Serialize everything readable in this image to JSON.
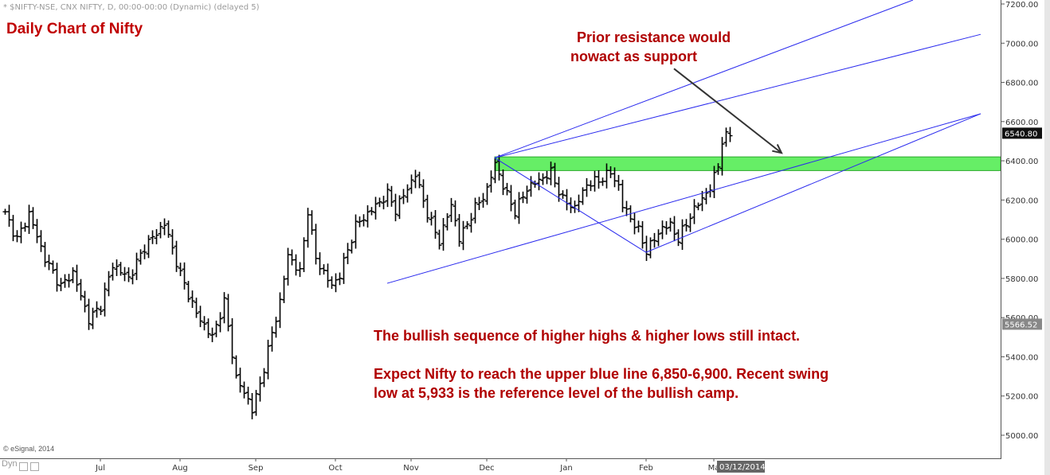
{
  "header": {
    "instrument": "* $NIFTY-NSE, CNX NIFTY, D, 00:00-00:00 (Dynamic) (delayed 5)"
  },
  "chart_data": {
    "type": "ohlc",
    "title": "Daily Chart of Nifty",
    "y_axis": {
      "position": "right",
      "range": [
        4900,
        7220
      ],
      "ticks": [
        5000,
        5200,
        5400,
        5600,
        5800,
        6000,
        6200,
        6400,
        6600,
        6800,
        7000,
        7200
      ],
      "tick_labels": [
        "5000.00",
        "5200.00",
        "5400.00",
        "5600.00",
        "5800.00",
        "6000.00",
        "6200.00",
        "6400.00",
        "6600.00",
        "6800.00",
        "7000.00",
        "7200.00"
      ]
    },
    "x_axis": {
      "labels": [
        "Jul",
        "Aug",
        "Sep",
        "Oct",
        "Nov",
        "Dec",
        "Jan",
        "Feb",
        "Ma"
      ],
      "label_bar_index": [
        24,
        44,
        63,
        83,
        102,
        121,
        141,
        161,
        178
      ],
      "cursor_date": "03/12/2014"
    },
    "last_price": {
      "value": 6540.8,
      "label": "6540.80"
    },
    "marker_price": {
      "value": 5566.52,
      "label": "5566.52"
    },
    "pivots": [
      [
        0,
        6130
      ],
      [
        3,
        6000
      ],
      [
        6,
        6130
      ],
      [
        10,
        5900
      ],
      [
        14,
        5760
      ],
      [
        17,
        5830
      ],
      [
        21,
        5590
      ],
      [
        24,
        5660
      ],
      [
        27,
        5870
      ],
      [
        31,
        5800
      ],
      [
        35,
        5960
      ],
      [
        40,
        6080
      ],
      [
        44,
        5820
      ],
      [
        48,
        5620
      ],
      [
        52,
        5500
      ],
      [
        55,
        5680
      ],
      [
        58,
        5290
      ],
      [
        61,
        5180
      ],
      [
        62,
        5130
      ],
      [
        64,
        5260
      ],
      [
        67,
        5520
      ],
      [
        69,
        5680
      ],
      [
        71,
        5920
      ],
      [
        74,
        5830
      ],
      [
        76,
        6150
      ],
      [
        78,
        5900
      ],
      [
        82,
        5760
      ],
      [
        84,
        5820
      ],
      [
        88,
        6070
      ],
      [
        92,
        6150
      ],
      [
        96,
        6230
      ],
      [
        98,
        6150
      ],
      [
        101,
        6260
      ],
      [
        103,
        6330
      ],
      [
        106,
        6130
      ],
      [
        109,
        5990
      ],
      [
        112,
        6180
      ],
      [
        114,
        6000
      ],
      [
        118,
        6160
      ],
      [
        121,
        6250
      ],
      [
        123,
        6390
      ],
      [
        125,
        6270
      ],
      [
        128,
        6140
      ],
      [
        131,
        6260
      ],
      [
        134,
        6300
      ],
      [
        137,
        6340
      ],
      [
        140,
        6200
      ],
      [
        143,
        6160
      ],
      [
        146,
        6280
      ],
      [
        149,
        6300
      ],
      [
        152,
        6340
      ],
      [
        154,
        6270
      ],
      [
        155,
        6170
      ],
      [
        157,
        6110
      ],
      [
        159,
        6040
      ],
      [
        161,
        5940
      ],
      [
        163,
        6000
      ],
      [
        165,
        6060
      ],
      [
        167,
        6070
      ],
      [
        169,
        6000
      ],
      [
        172,
        6120
      ],
      [
        175,
        6210
      ],
      [
        177,
        6260
      ],
      [
        179,
        6380
      ],
      [
        180,
        6500
      ],
      [
        182,
        6540
      ]
    ],
    "series": [
      {
        "type": "channel-line",
        "color": "#2a2aee",
        "points": [
          [
            96,
            5775
          ],
          [
            245,
            6640
          ]
        ]
      },
      {
        "type": "channel-line",
        "color": "#2a2aee",
        "points": [
          [
            123,
            6415
          ],
          [
            245,
            7045
          ]
        ]
      },
      {
        "type": "channel-line",
        "color": "#2a2aee",
        "points": [
          [
            123,
            6415
          ],
          [
            228,
            7220
          ]
        ]
      },
      {
        "type": "channel-line",
        "color": "#2a2aee",
        "points": [
          [
            161,
            5933
          ],
          [
            245,
            6640
          ]
        ]
      },
      {
        "type": "trend-line",
        "color": "#2a2aee",
        "points": [
          [
            123,
            6415
          ],
          [
            161,
            5933
          ]
        ]
      }
    ],
    "zones": [
      {
        "color": "#66ee66",
        "y_range": [
          6350,
          6420
        ],
        "x_start_bar": 123
      }
    ],
    "arrows": [
      {
        "color": "#333333",
        "from": [
          168,
          6870
        ],
        "to": [
          195,
          6440
        ]
      }
    ],
    "annotations": {
      "resistance": [
        "Prior resistance would",
        "nowact as support"
      ],
      "sequence": "The bullish sequence of higher highs & higher lows still intact.",
      "target": "Expect Nifty to reach the upper blue line 6,850-6,900. Recent swing low at 5,933 is the reference level of the bullish camp."
    }
  },
  "footer": {
    "provider": "© eSignal, 2014",
    "mode": "Dyn"
  }
}
